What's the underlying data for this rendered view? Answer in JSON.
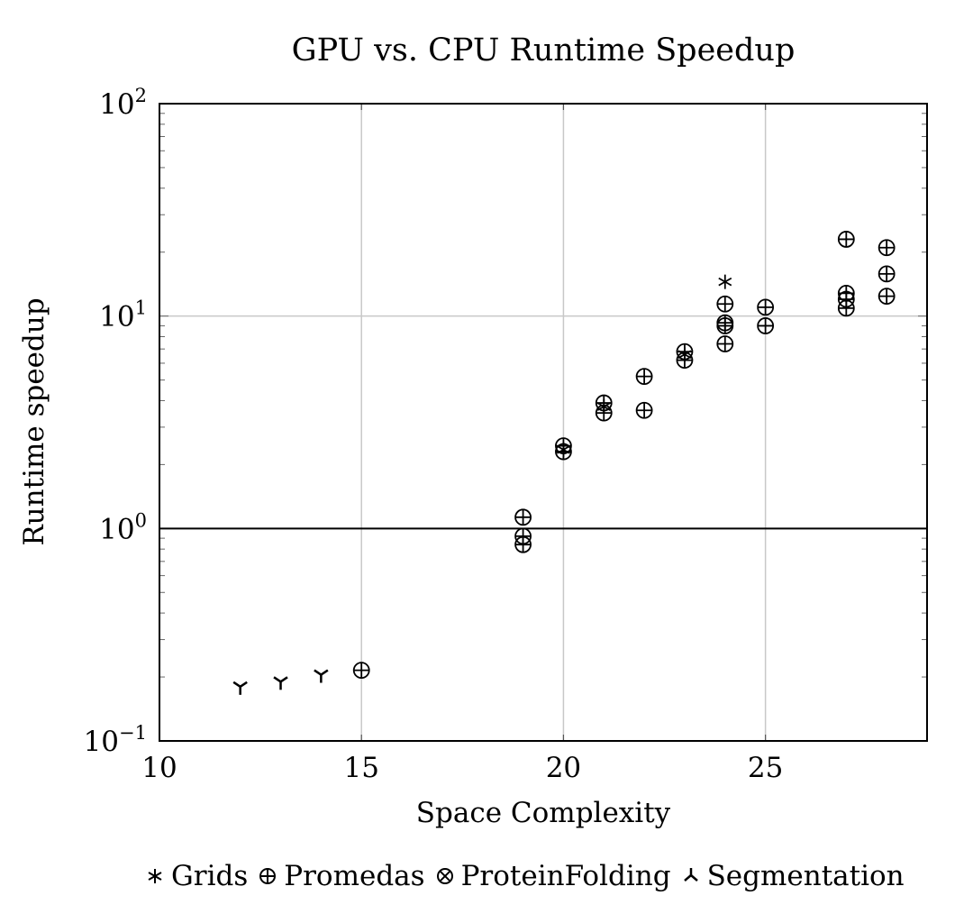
{
  "chart_data": {
    "type": "scatter",
    "title": "GPU vs. CPU Runtime Speedup",
    "xlabel": "Space Complexity",
    "ylabel": "Runtime speedup",
    "xlim": [
      10,
      29
    ],
    "ylim": [
      0.1,
      100
    ],
    "yscale": "log",
    "grid": true,
    "reference_line_y": 1,
    "x_ticks": [
      10,
      15,
      20,
      25
    ],
    "y_ticks": [
      {
        "value": 0.1,
        "base": "10",
        "exp": "−1"
      },
      {
        "value": 1,
        "base": "10",
        "exp": "0"
      },
      {
        "value": 10,
        "base": "10",
        "exp": "1"
      },
      {
        "value": 100,
        "base": "10",
        "exp": "2"
      }
    ],
    "legend_position": "bottom",
    "series": [
      {
        "name": "Grids",
        "marker": "star",
        "points": [
          [
            24,
            14.5
          ],
          [
            20,
            2.35
          ],
          [
            21,
            3.75
          ],
          [
            23,
            6.6
          ]
        ]
      },
      {
        "name": "Promedas",
        "marker": "oplus",
        "points": [
          [
            15,
            0.215
          ],
          [
            19,
            1.13
          ],
          [
            19,
            0.92
          ],
          [
            19,
            0.84
          ],
          [
            20,
            2.45
          ],
          [
            20,
            2.3
          ],
          [
            21,
            3.9
          ],
          [
            21,
            3.5
          ],
          [
            22,
            5.2
          ],
          [
            22,
            3.6
          ],
          [
            23,
            6.8
          ],
          [
            23,
            6.2
          ],
          [
            24,
            11.4
          ],
          [
            24,
            9.3
          ],
          [
            24,
            9.0
          ],
          [
            24,
            7.4
          ],
          [
            25,
            11.0
          ],
          [
            25,
            9.0
          ],
          [
            27,
            23.0
          ],
          [
            27,
            12.8
          ],
          [
            27,
            12.0
          ],
          [
            27,
            10.9
          ],
          [
            28,
            21.0
          ],
          [
            28,
            15.8
          ],
          [
            28,
            12.4
          ]
        ]
      },
      {
        "name": "ProteinFolding",
        "marker": "otimes",
        "points": []
      },
      {
        "name": "Segmentation",
        "marker": "tri",
        "points": [
          [
            12,
            0.18
          ],
          [
            13,
            0.19
          ],
          [
            14,
            0.205
          ]
        ]
      }
    ]
  }
}
